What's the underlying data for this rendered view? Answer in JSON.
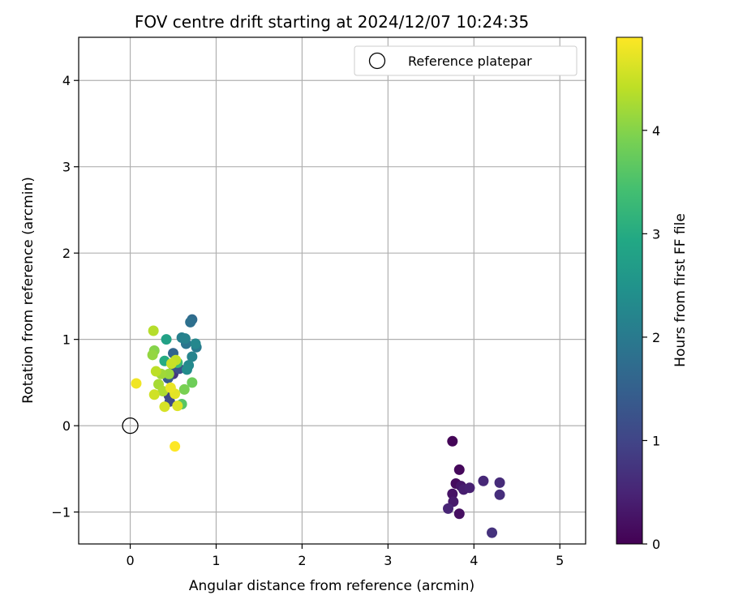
{
  "chart_data": {
    "type": "scatter",
    "title": "FOV centre drift starting at 2024/12/07 10:24:35",
    "xlabel": "Angular distance from reference (arcmin)",
    "ylabel": "Rotation from reference (arcmin)",
    "xlim": [
      -0.6,
      5.3
    ],
    "ylim": [
      -1.37,
      4.5
    ],
    "xticks": [
      0,
      1,
      2,
      3,
      4,
      5
    ],
    "xtick_labels": [
      "0",
      "1",
      "2",
      "3",
      "4",
      "5"
    ],
    "yticks": [
      -1,
      0,
      1,
      2,
      3,
      4
    ],
    "ytick_labels": [
      "−1",
      "0",
      "1",
      "2",
      "3",
      "4"
    ],
    "grid": true,
    "colormap": "viridis",
    "colorbar": {
      "label": "Hours from first FF file",
      "range": [
        0,
        4.9
      ],
      "ticks": [
        0,
        1,
        2,
        3,
        4
      ],
      "tick_labels": [
        "0",
        "1",
        "2",
        "3",
        "4"
      ]
    },
    "legend": {
      "placement": "top-right",
      "entries": [
        "Reference platepar"
      ]
    },
    "reference": {
      "x": 0,
      "y": 0
    },
    "points": [
      {
        "x": 3.75,
        "y": -0.18,
        "c": 0.05
      },
      {
        "x": 3.83,
        "y": -0.51,
        "c": 0.1
      },
      {
        "x": 3.79,
        "y": -0.67,
        "c": 0.15
      },
      {
        "x": 3.85,
        "y": -0.7,
        "c": 0.3
      },
      {
        "x": 3.88,
        "y": -0.74,
        "c": 0.4
      },
      {
        "x": 3.95,
        "y": -0.72,
        "c": 0.45
      },
      {
        "x": 3.75,
        "y": -0.79,
        "c": 0.25
      },
      {
        "x": 3.76,
        "y": -0.88,
        "c": 0.35
      },
      {
        "x": 3.7,
        "y": -0.96,
        "c": 0.5
      },
      {
        "x": 3.83,
        "y": -1.02,
        "c": 0.2
      },
      {
        "x": 4.11,
        "y": -0.64,
        "c": 0.55
      },
      {
        "x": 4.3,
        "y": -0.66,
        "c": 0.6
      },
      {
        "x": 4.3,
        "y": -0.8,
        "c": 0.65
      },
      {
        "x": 4.21,
        "y": -1.24,
        "c": 0.7
      },
      {
        "x": 0.5,
        "y": 0.6,
        "c": 0.8
      },
      {
        "x": 0.45,
        "y": 0.35,
        "c": 1.0
      },
      {
        "x": 0.46,
        "y": 0.28,
        "c": 1.1
      },
      {
        "x": 0.57,
        "y": 0.66,
        "c": 1.2
      },
      {
        "x": 0.5,
        "y": 0.7,
        "c": 1.3
      },
      {
        "x": 0.44,
        "y": 0.55,
        "c": 1.4
      },
      {
        "x": 0.5,
        "y": 0.84,
        "c": 1.6
      },
      {
        "x": 0.72,
        "y": 1.23,
        "c": 1.7
      },
      {
        "x": 0.7,
        "y": 1.2,
        "c": 1.8
      },
      {
        "x": 0.65,
        "y": 0.95,
        "c": 1.9
      },
      {
        "x": 0.77,
        "y": 0.91,
        "c": 2.0
      },
      {
        "x": 0.6,
        "y": 1.02,
        "c": 2.1
      },
      {
        "x": 0.64,
        "y": 1.01,
        "c": 2.15
      },
      {
        "x": 0.72,
        "y": 0.8,
        "c": 2.2
      },
      {
        "x": 0.76,
        "y": 0.95,
        "c": 2.25
      },
      {
        "x": 0.68,
        "y": 0.7,
        "c": 2.3
      },
      {
        "x": 0.66,
        "y": 0.65,
        "c": 2.35
      },
      {
        "x": 0.42,
        "y": 1.0,
        "c": 2.8
      },
      {
        "x": 0.4,
        "y": 0.75,
        "c": 3.0
      },
      {
        "x": 0.55,
        "y": 0.73,
        "c": 3.3
      },
      {
        "x": 0.6,
        "y": 0.25,
        "c": 3.6
      },
      {
        "x": 0.72,
        "y": 0.5,
        "c": 3.8
      },
      {
        "x": 0.63,
        "y": 0.42,
        "c": 3.9
      },
      {
        "x": 0.28,
        "y": 0.87,
        "c": 4.0
      },
      {
        "x": 0.26,
        "y": 0.82,
        "c": 4.1
      },
      {
        "x": 0.45,
        "y": 0.6,
        "c": 4.15
      },
      {
        "x": 0.36,
        "y": 0.6,
        "c": 4.2
      },
      {
        "x": 0.33,
        "y": 0.48,
        "c": 4.25
      },
      {
        "x": 0.38,
        "y": 0.4,
        "c": 4.3
      },
      {
        "x": 0.27,
        "y": 1.1,
        "c": 4.35
      },
      {
        "x": 0.3,
        "y": 0.63,
        "c": 4.4
      },
      {
        "x": 0.53,
        "y": 0.76,
        "c": 4.45
      },
      {
        "x": 0.48,
        "y": 0.72,
        "c": 4.5
      },
      {
        "x": 0.28,
        "y": 0.36,
        "c": 4.55
      },
      {
        "x": 0.4,
        "y": 0.22,
        "c": 4.6
      },
      {
        "x": 0.55,
        "y": 0.23,
        "c": 4.65
      },
      {
        "x": 0.52,
        "y": 0.37,
        "c": 4.7
      },
      {
        "x": 0.47,
        "y": 0.44,
        "c": 4.75
      },
      {
        "x": 0.07,
        "y": 0.49,
        "c": 4.8
      },
      {
        "x": 0.52,
        "y": -0.24,
        "c": 4.9
      }
    ]
  }
}
